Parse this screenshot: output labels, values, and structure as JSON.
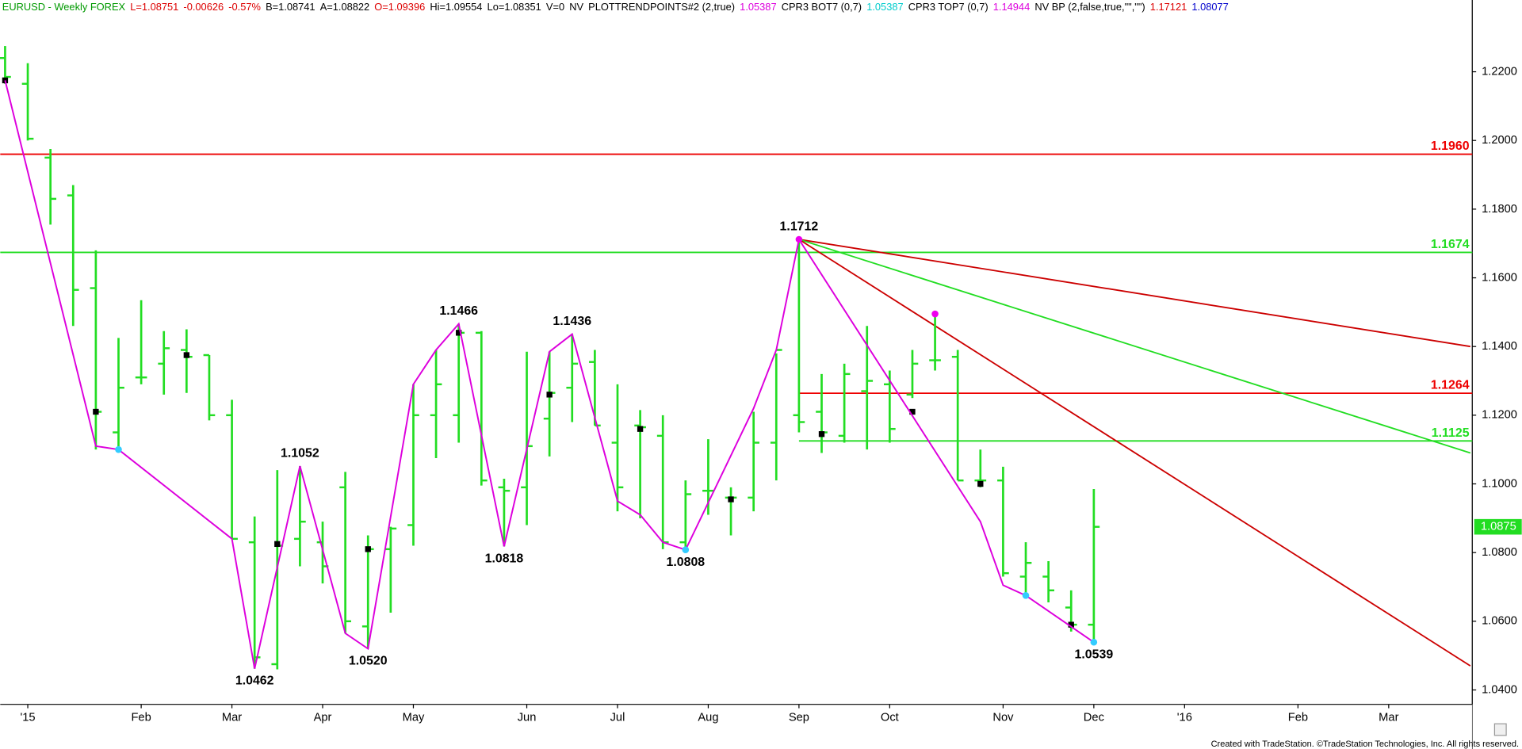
{
  "chart_data": {
    "type": "ohlc",
    "header": [
      {
        "text": "EURUSD - Weekly  FOREX",
        "color": "#009900"
      },
      {
        "text": "L=1.08751",
        "color": "#dd0000"
      },
      {
        "text": "-0.00626",
        "color": "#dd0000"
      },
      {
        "text": "-0.57%",
        "color": "#dd0000"
      },
      {
        "text": "B=1.08741",
        "color": "#000000"
      },
      {
        "text": "A=1.08822",
        "color": "#000000"
      },
      {
        "text": "O=1.09396",
        "color": "#dd0000"
      },
      {
        "text": "Hi=1.09554",
        "color": "#000000"
      },
      {
        "text": "Lo=1.08351",
        "color": "#000000"
      },
      {
        "text": "V=0",
        "color": "#000000"
      },
      {
        "text": "NV",
        "color": "#000000"
      },
      {
        "text": "PLOTTRENDPOINTS#2 (2,true)",
        "color": "#000000"
      },
      {
        "text": "1.05387",
        "color": "#dd00dd"
      },
      {
        "text": "CPR3 BOT7 (0,7)",
        "color": "#000000"
      },
      {
        "text": "1.05387",
        "color": "#00cccc"
      },
      {
        "text": "CPR3 TOP7 (0,7)",
        "color": "#000000"
      },
      {
        "text": "1.14944",
        "color": "#dd00dd"
      },
      {
        "text": "NV BP (2,false,true,\"\",\"\")",
        "color": "#000000"
      },
      {
        "text": "1.17121",
        "color": "#dd0000"
      },
      {
        "text": "1.08077",
        "color": "#0000cc"
      }
    ],
    "categories": [
      null,
      "'15",
      null,
      null,
      null,
      null,
      "Feb",
      null,
      null,
      null,
      "Mar",
      null,
      null,
      null,
      "Apr",
      null,
      null,
      null,
      "May",
      null,
      null,
      null,
      null,
      "Jun",
      null,
      null,
      null,
      "Jul",
      null,
      null,
      null,
      "Aug",
      null,
      null,
      null,
      "Sep",
      null,
      null,
      null,
      "Oct",
      null,
      null,
      null,
      null,
      "Nov",
      null,
      null,
      null,
      "Dec",
      null,
      null,
      null,
      "'16",
      null,
      null,
      null,
      null,
      "Feb",
      null,
      null,
      null,
      "Mar",
      null,
      null,
      null
    ],
    "open": [
      1.224,
      1.2165,
      1.195,
      1.184,
      1.157,
      1.115,
      1.131,
      1.135,
      1.139,
      1.1375,
      1.12,
      1.083,
      1.0475,
      1.084,
      1.083,
      1.099,
      1.0585,
      1.081,
      1.088,
      1.12,
      1.12,
      1.144,
      1.099,
      1.099,
      1.119,
      1.128,
      1.1355,
      1.112,
      1.117,
      1.114,
      1.083,
      1.098,
      1.096,
      1.096,
      1.112,
      1.12,
      1.121,
      1.114,
      1.127,
      1.129,
      1.126,
      1.136,
      1.137,
      1.101,
      1.101,
      1.073,
      1.073,
      1.064,
      1.059,
      null,
      null,
      null,
      null,
      null,
      null,
      null,
      null,
      null,
      null,
      null,
      null,
      null,
      null,
      null,
      null
    ],
    "high": [
      1.2275,
      1.2225,
      1.1975,
      1.187,
      1.168,
      1.1425,
      1.1535,
      1.1445,
      1.145,
      1.1375,
      1.1245,
      1.0905,
      1.104,
      1.1052,
      1.089,
      1.1035,
      1.085,
      1.0875,
      1.129,
      1.139,
      1.1466,
      1.1445,
      1.1015,
      1.1385,
      1.1385,
      1.1436,
      1.139,
      1.129,
      1.1215,
      1.12,
      1.101,
      1.113,
      1.099,
      1.121,
      1.138,
      1.1712,
      1.132,
      1.135,
      1.146,
      1.133,
      1.139,
      1.1495,
      1.139,
      1.11,
      1.105,
      1.083,
      1.0775,
      1.069,
      1.0985,
      null,
      null,
      null,
      null,
      null,
      null,
      null,
      null,
      null,
      null,
      null,
      null,
      null,
      null,
      null,
      null
    ],
    "low": [
      1.2165,
      1.2,
      1.1755,
      1.146,
      1.11,
      1.11,
      1.129,
      1.126,
      1.1265,
      1.1185,
      1.084,
      1.0462,
      1.046,
      1.076,
      1.071,
      1.0565,
      1.052,
      1.0625,
      1.082,
      1.1075,
      1.112,
      1.0995,
      1.0818,
      1.088,
      1.108,
      1.118,
      1.117,
      1.092,
      1.09,
      1.081,
      1.0808,
      1.091,
      1.085,
      1.092,
      1.101,
      1.115,
      1.109,
      1.112,
      1.11,
      1.112,
      1.125,
      1.133,
      1.101,
      1.099,
      1.073,
      1.0675,
      1.0655,
      1.057,
      1.0539,
      null,
      null,
      null,
      null,
      null,
      null,
      null,
      null,
      null,
      null,
      null,
      null,
      null,
      null,
      null,
      null
    ],
    "close": [
      1.2185,
      1.2005,
      1.183,
      1.1565,
      1.121,
      1.128,
      1.131,
      1.1395,
      1.137,
      1.12,
      1.084,
      1.0495,
      1.082,
      1.089,
      1.076,
      1.06,
      1.081,
      1.087,
      1.12,
      1.129,
      1.144,
      1.101,
      1.098,
      1.111,
      1.1265,
      1.135,
      1.117,
      1.099,
      1.1165,
      1.083,
      1.097,
      1.098,
      1.096,
      1.112,
      1.139,
      1.118,
      1.115,
      1.132,
      1.13,
      1.116,
      1.135,
      1.136,
      1.101,
      1.101,
      1.074,
      1.077,
      1.069,
      1.059,
      1.0875,
      null,
      null,
      null,
      null,
      null,
      null,
      null,
      null,
      null,
      null,
      null,
      null,
      null,
      null,
      null,
      null
    ],
    "color": "#22dd22",
    "ylim": [
      1.0358,
      1.2409
    ],
    "yticks": [
      {
        "value": 1.22,
        "label": "1.2200"
      },
      {
        "value": 1.2,
        "label": "1.2000"
      },
      {
        "value": 1.18,
        "label": "1.1800"
      },
      {
        "value": 1.16,
        "label": "1.1600"
      },
      {
        "value": 1.14,
        "label": "1.1400"
      },
      {
        "value": 1.12,
        "label": "1.1200"
      },
      {
        "value": 1.1,
        "label": "1.1000"
      },
      {
        "value": 1.08,
        "label": "1.0800"
      },
      {
        "value": 1.06,
        "label": "1.0600"
      },
      {
        "value": 1.04,
        "label": "1.0400"
      }
    ],
    "zigzag": {
      "color": "#dd00dd",
      "x": [
        0,
        4,
        5,
        10,
        11,
        13,
        15,
        16,
        18,
        19,
        20,
        22,
        24,
        25,
        27,
        28,
        29,
        30,
        33,
        34,
        35,
        43,
        44,
        45,
        48
      ],
      "values": [
        1.2175,
        1.111,
        1.11,
        1.084,
        1.0462,
        1.1052,
        1.0565,
        1.052,
        1.129,
        1.139,
        1.1466,
        1.0818,
        1.1385,
        1.1436,
        1.095,
        1.091,
        1.083,
        1.0808,
        1.122,
        1.139,
        1.1712,
        1.089,
        1.0705,
        1.0675,
        1.0539
      ]
    },
    "pivot_labels": {
      "x": [
        11,
        13,
        16,
        20,
        22,
        25,
        30,
        35,
        48
      ],
      "values": [
        1.0462,
        1.1052,
        1.052,
        1.1466,
        1.0818,
        1.1436,
        1.0808,
        1.1712,
        1.0539
      ],
      "value_labels": [
        "1.0462",
        "1.1052",
        "1.0520",
        "1.1466",
        "1.0818",
        "1.1436",
        "1.0808",
        "1.1712",
        "1.0539"
      ]
    },
    "levels": [
      {
        "value": 1.196,
        "label": "1.1960",
        "color": "#ee0000",
        "x_start": 0
      },
      {
        "value": 1.1674,
        "label": "1.1674",
        "color": "#22dd22",
        "x_start": 0
      },
      {
        "value": 1.1264,
        "label": "1.1264",
        "color": "#ee0000",
        "x_start": 35
      },
      {
        "value": 1.1125,
        "label": "1.1125",
        "color": "#22dd22",
        "x_start": 35
      }
    ],
    "trendlines": [
      {
        "color": "#cc0000",
        "x": [
          35,
          64.6
        ],
        "values": [
          1.1712,
          1.14
        ]
      },
      {
        "color": "#22dd22",
        "x": [
          35,
          64.6
        ],
        "values": [
          1.1712,
          1.109
        ]
      },
      {
        "color": "#cc0000",
        "x": [
          35,
          64.6
        ],
        "values": [
          1.1712,
          1.047
        ]
      }
    ],
    "dots": {
      "x": [
        35,
        41,
        5,
        30,
        45,
        48
      ],
      "values": [
        1.1712,
        1.1495,
        1.11,
        1.0808,
        1.0675,
        1.0539
      ],
      "colors": [
        "#ee00ee",
        "#ee00ee",
        "#33ccff",
        "#33ccff",
        "#33ccff",
        "#33ccff"
      ]
    },
    "black_markers": {
      "x": [
        0,
        4,
        8,
        12,
        16,
        20,
        24,
        28,
        32,
        36,
        40,
        43,
        47
      ],
      "values": [
        1.2175,
        1.121,
        1.1375,
        1.0825,
        1.081,
        1.144,
        1.126,
        1.116,
        1.0955,
        1.1145,
        1.121,
        1.1,
        1.059
      ]
    },
    "last_price": {
      "value": 1.0875,
      "label": "1.0875",
      "color": "#22dd22"
    },
    "footer": "Created with TradeStation. ©TradeStation Technologies, Inc. All rights reserved."
  }
}
